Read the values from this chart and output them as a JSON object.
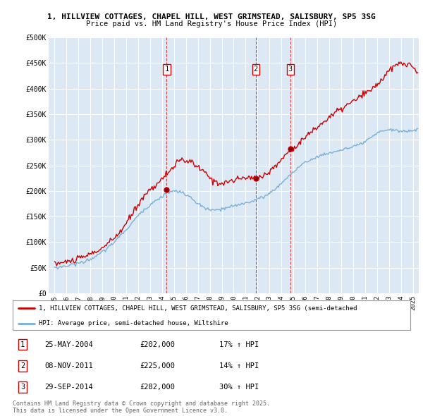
{
  "title_line1": "1, HILLVIEW COTTAGES, CHAPEL HILL, WEST GRIMSTEAD, SALISBURY, SP5 3SG",
  "title_line2": "Price paid vs. HM Land Registry's House Price Index (HPI)",
  "bg_color": "#dce9f5",
  "grid_color": "#ffffff",
  "red_line_color": "#cc0000",
  "blue_line_color": "#7ab0d4",
  "ylim": [
    0,
    500000
  ],
  "yticks": [
    0,
    50000,
    100000,
    150000,
    200000,
    250000,
    300000,
    350000,
    400000,
    450000,
    500000
  ],
  "ytick_labels": [
    "£0",
    "£50K",
    "£100K",
    "£150K",
    "£200K",
    "£250K",
    "£300K",
    "£350K",
    "£400K",
    "£450K",
    "£500K"
  ],
  "xlim_start": 1994.5,
  "xlim_end": 2025.5,
  "xticks": [
    1995,
    1996,
    1997,
    1998,
    1999,
    2000,
    2001,
    2002,
    2003,
    2004,
    2005,
    2006,
    2007,
    2008,
    2009,
    2010,
    2011,
    2012,
    2013,
    2014,
    2015,
    2016,
    2017,
    2018,
    2019,
    2020,
    2021,
    2022,
    2023,
    2024,
    2025
  ],
  "sale_dates": [
    2004.39,
    2011.85,
    2014.75
  ],
  "sale_prices": [
    202000,
    225000,
    282000
  ],
  "sale_labels": [
    "1",
    "2",
    "3"
  ],
  "legend_red": "1, HILLVIEW COTTAGES, CHAPEL HILL, WEST GRIMSTEAD, SALISBURY, SP5 3SG (semi-detached",
  "legend_blue": "HPI: Average price, semi-detached house, Wiltshire",
  "table_rows": [
    {
      "label": "1",
      "date": "25-MAY-2004",
      "price": "£202,000",
      "hpi": "17% ↑ HPI"
    },
    {
      "label": "2",
      "date": "08-NOV-2011",
      "price": "£225,000",
      "hpi": "14% ↑ HPI"
    },
    {
      "label": "3",
      "date": "29-SEP-2014",
      "price": "£282,000",
      "hpi": "30% ↑ HPI"
    }
  ],
  "footer": "Contains HM Land Registry data © Crown copyright and database right 2025.\nThis data is licensed under the Open Government Licence v3.0."
}
